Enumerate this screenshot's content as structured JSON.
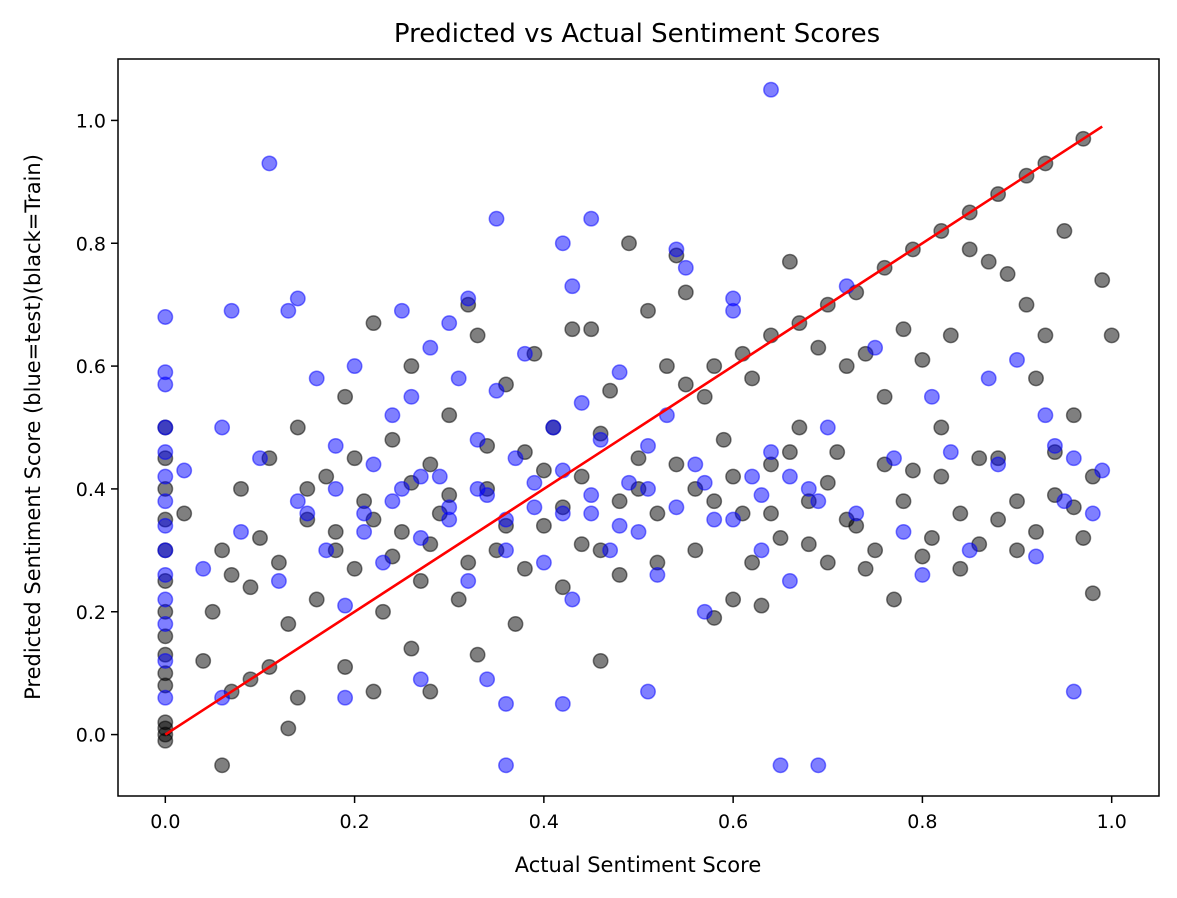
{
  "chart_data": {
    "type": "scatter",
    "title": "Predicted vs Actual Sentiment Scores",
    "xlabel": "Actual Sentiment Score",
    "ylabel": "Predicted Sentiment Score (blue=test)(black=Train)",
    "xlim": [
      -0.05,
      1.05
    ],
    "ylim": [
      -0.1,
      1.1
    ],
    "xticks": [
      "0.0",
      "0.2",
      "0.4",
      "0.6",
      "0.8",
      "1.0"
    ],
    "yticks": [
      "0.0",
      "0.2",
      "0.4",
      "0.6",
      "0.8",
      "1.0"
    ],
    "grid": false,
    "legend": false,
    "colors": {
      "train": "#000000",
      "test": "#0000ff",
      "fit_line": "#ff0000"
    },
    "point_alpha": 0.5,
    "series": [
      {
        "values_xy": [
          [
            0.0,
            -0.01
          ],
          [
            0.0,
            0.0
          ],
          [
            0.0,
            0.01
          ],
          [
            0.0,
            0.02
          ],
          [
            0.0,
            0.08
          ],
          [
            0.0,
            0.1
          ],
          [
            0.0,
            0.13
          ],
          [
            0.0,
            0.16
          ],
          [
            0.0,
            0.2
          ],
          [
            0.0,
            0.25
          ],
          [
            0.0,
            0.3
          ],
          [
            0.0,
            0.35
          ],
          [
            0.0,
            0.4
          ],
          [
            0.0,
            0.45
          ],
          [
            0.0,
            0.5
          ],
          [
            0.06,
            -0.05
          ],
          [
            0.13,
            0.01
          ],
          [
            0.14,
            0.06
          ],
          [
            0.07,
            0.07
          ],
          [
            0.09,
            0.09
          ],
          [
            0.11,
            0.11
          ],
          [
            0.19,
            0.11
          ],
          [
            0.22,
            0.07
          ],
          [
            0.26,
            0.14
          ],
          [
            0.28,
            0.07
          ],
          [
            0.33,
            0.13
          ],
          [
            0.46,
            0.12
          ],
          [
            0.02,
            0.36
          ],
          [
            0.04,
            0.12
          ],
          [
            0.05,
            0.2
          ],
          [
            0.06,
            0.3
          ],
          [
            0.07,
            0.26
          ],
          [
            0.08,
            0.4
          ],
          [
            0.09,
            0.24
          ],
          [
            0.1,
            0.32
          ],
          [
            0.11,
            0.45
          ],
          [
            0.12,
            0.28
          ],
          [
            0.13,
            0.18
          ],
          [
            0.14,
            0.5
          ],
          [
            0.15,
            0.35
          ],
          [
            0.16,
            0.22
          ],
          [
            0.17,
            0.42
          ],
          [
            0.18,
            0.3
          ],
          [
            0.19,
            0.55
          ],
          [
            0.2,
            0.27
          ],
          [
            0.21,
            0.38
          ],
          [
            0.22,
            0.67
          ],
          [
            0.23,
            0.2
          ],
          [
            0.24,
            0.48
          ],
          [
            0.25,
            0.33
          ],
          [
            0.26,
            0.6
          ],
          [
            0.27,
            0.25
          ],
          [
            0.28,
            0.44
          ],
          [
            0.29,
            0.36
          ],
          [
            0.3,
            0.52
          ],
          [
            0.31,
            0.22
          ],
          [
            0.32,
            0.7
          ],
          [
            0.33,
            0.65
          ],
          [
            0.34,
            0.4
          ],
          [
            0.35,
            0.3
          ],
          [
            0.36,
            0.57
          ],
          [
            0.37,
            0.18
          ],
          [
            0.38,
            0.46
          ],
          [
            0.39,
            0.62
          ],
          [
            0.4,
            0.34
          ],
          [
            0.41,
            0.5
          ],
          [
            0.42,
            0.24
          ],
          [
            0.43,
            0.66
          ],
          [
            0.44,
            0.42
          ],
          [
            0.45,
            0.66
          ],
          [
            0.46,
            0.3
          ],
          [
            0.47,
            0.56
          ],
          [
            0.48,
            0.38
          ],
          [
            0.49,
            0.8
          ],
          [
            0.5,
            0.45
          ],
          [
            0.51,
            0.69
          ],
          [
            0.52,
            0.28
          ],
          [
            0.53,
            0.6
          ],
          [
            0.54,
            0.78
          ],
          [
            0.55,
            0.72
          ],
          [
            0.56,
            0.4
          ],
          [
            0.57,
            0.55
          ],
          [
            0.58,
            0.19
          ],
          [
            0.59,
            0.48
          ],
          [
            0.6,
            0.22
          ],
          [
            0.61,
            0.36
          ],
          [
            0.62,
            0.58
          ],
          [
            0.63,
            0.21
          ],
          [
            0.64,
            0.44
          ],
          [
            0.65,
            0.32
          ],
          [
            0.66,
            0.77
          ],
          [
            0.67,
            0.5
          ],
          [
            0.68,
            0.38
          ],
          [
            0.69,
            0.63
          ],
          [
            0.7,
            0.28
          ],
          [
            0.71,
            0.46
          ],
          [
            0.72,
            0.6
          ],
          [
            0.73,
            0.34
          ],
          [
            0.74,
            0.62
          ],
          [
            0.75,
            0.3
          ],
          [
            0.76,
            0.55
          ],
          [
            0.77,
            0.22
          ],
          [
            0.78,
            0.66
          ],
          [
            0.79,
            0.43
          ],
          [
            0.8,
            0.61
          ],
          [
            0.81,
            0.32
          ],
          [
            0.82,
            0.5
          ],
          [
            0.83,
            0.65
          ],
          [
            0.84,
            0.27
          ],
          [
            0.85,
            0.79
          ],
          [
            0.86,
            0.45
          ],
          [
            0.87,
            0.77
          ],
          [
            0.88,
            0.35
          ],
          [
            0.89,
            0.75
          ],
          [
            0.9,
            0.3
          ],
          [
            0.91,
            0.7
          ],
          [
            0.92,
            0.58
          ],
          [
            0.93,
            0.65
          ],
          [
            0.94,
            0.39
          ],
          [
            0.95,
            0.82
          ],
          [
            0.96,
            0.52
          ],
          [
            0.97,
            0.32
          ],
          [
            0.98,
            0.23
          ],
          [
            0.99,
            0.74
          ],
          [
            1.0,
            0.65
          ],
          [
            0.55,
            0.57
          ],
          [
            0.58,
            0.6
          ],
          [
            0.61,
            0.62
          ],
          [
            0.64,
            0.65
          ],
          [
            0.67,
            0.67
          ],
          [
            0.7,
            0.7
          ],
          [
            0.73,
            0.72
          ],
          [
            0.76,
            0.76
          ],
          [
            0.79,
            0.79
          ],
          [
            0.82,
            0.82
          ],
          [
            0.85,
            0.85
          ],
          [
            0.88,
            0.88
          ],
          [
            0.91,
            0.91
          ],
          [
            0.93,
            0.93
          ],
          [
            0.97,
            0.97
          ],
          [
            0.15,
            0.4
          ],
          [
            0.18,
            0.33
          ],
          [
            0.2,
            0.45
          ],
          [
            0.22,
            0.35
          ],
          [
            0.24,
            0.29
          ],
          [
            0.26,
            0.41
          ],
          [
            0.28,
            0.31
          ],
          [
            0.3,
            0.39
          ],
          [
            0.32,
            0.28
          ],
          [
            0.34,
            0.47
          ],
          [
            0.36,
            0.34
          ],
          [
            0.38,
            0.27
          ],
          [
            0.4,
            0.43
          ],
          [
            0.42,
            0.37
          ],
          [
            0.44,
            0.31
          ],
          [
            0.46,
            0.49
          ],
          [
            0.48,
            0.26
          ],
          [
            0.5,
            0.4
          ],
          [
            0.52,
            0.36
          ],
          [
            0.54,
            0.44
          ],
          [
            0.56,
            0.3
          ],
          [
            0.58,
            0.38
          ],
          [
            0.6,
            0.42
          ],
          [
            0.62,
            0.28
          ],
          [
            0.64,
            0.36
          ],
          [
            0.66,
            0.46
          ],
          [
            0.68,
            0.31
          ],
          [
            0.7,
            0.41
          ],
          [
            0.72,
            0.35
          ],
          [
            0.74,
            0.27
          ],
          [
            0.76,
            0.44
          ],
          [
            0.78,
            0.38
          ],
          [
            0.8,
            0.29
          ],
          [
            0.82,
            0.42
          ],
          [
            0.84,
            0.36
          ],
          [
            0.86,
            0.31
          ],
          [
            0.88,
            0.45
          ],
          [
            0.9,
            0.38
          ],
          [
            0.92,
            0.33
          ],
          [
            0.94,
            0.46
          ],
          [
            0.96,
            0.37
          ],
          [
            0.98,
            0.42
          ]
        ]
      },
      {
        "values_xy": [
          [
            0.0,
            0.06
          ],
          [
            0.0,
            0.12
          ],
          [
            0.0,
            0.18
          ],
          [
            0.0,
            0.22
          ],
          [
            0.0,
            0.26
          ],
          [
            0.0,
            0.3
          ],
          [
            0.0,
            0.34
          ],
          [
            0.0,
            0.38
          ],
          [
            0.0,
            0.42
          ],
          [
            0.0,
            0.46
          ],
          [
            0.0,
            0.5
          ],
          [
            0.0,
            0.57
          ],
          [
            0.0,
            0.59
          ],
          [
            0.0,
            0.68
          ],
          [
            0.11,
            0.93
          ],
          [
            0.64,
            1.05
          ],
          [
            0.35,
            0.84
          ],
          [
            0.45,
            0.84
          ],
          [
            0.42,
            0.8
          ],
          [
            0.43,
            0.73
          ],
          [
            0.32,
            0.71
          ],
          [
            0.14,
            0.71
          ],
          [
            0.07,
            0.69
          ],
          [
            0.13,
            0.69
          ],
          [
            0.25,
            0.69
          ],
          [
            0.3,
            0.67
          ],
          [
            0.36,
            -0.05
          ],
          [
            0.65,
            -0.05
          ],
          [
            0.69,
            -0.05
          ],
          [
            0.96,
            0.07
          ],
          [
            0.51,
            0.07
          ],
          [
            0.19,
            0.06
          ],
          [
            0.36,
            0.05
          ],
          [
            0.42,
            0.05
          ],
          [
            0.27,
            0.09
          ],
          [
            0.34,
            0.09
          ],
          [
            0.06,
            0.06
          ],
          [
            0.02,
            0.43
          ],
          [
            0.04,
            0.27
          ],
          [
            0.06,
            0.5
          ],
          [
            0.08,
            0.33
          ],
          [
            0.1,
            0.45
          ],
          [
            0.12,
            0.25
          ],
          [
            0.14,
            0.38
          ],
          [
            0.16,
            0.58
          ],
          [
            0.17,
            0.3
          ],
          [
            0.18,
            0.47
          ],
          [
            0.19,
            0.21
          ],
          [
            0.2,
            0.6
          ],
          [
            0.21,
            0.36
          ],
          [
            0.22,
            0.44
          ],
          [
            0.23,
            0.28
          ],
          [
            0.24,
            0.52
          ],
          [
            0.25,
            0.4
          ],
          [
            0.26,
            0.55
          ],
          [
            0.27,
            0.32
          ],
          [
            0.28,
            0.63
          ],
          [
            0.29,
            0.42
          ],
          [
            0.3,
            0.35
          ],
          [
            0.31,
            0.58
          ],
          [
            0.32,
            0.25
          ],
          [
            0.33,
            0.48
          ],
          [
            0.34,
            0.39
          ],
          [
            0.35,
            0.56
          ],
          [
            0.36,
            0.3
          ],
          [
            0.37,
            0.45
          ],
          [
            0.38,
            0.62
          ],
          [
            0.39,
            0.37
          ],
          [
            0.4,
            0.28
          ],
          [
            0.41,
            0.5
          ],
          [
            0.42,
            0.43
          ],
          [
            0.43,
            0.22
          ],
          [
            0.44,
            0.54
          ],
          [
            0.45,
            0.36
          ],
          [
            0.46,
            0.48
          ],
          [
            0.47,
            0.3
          ],
          [
            0.48,
            0.59
          ],
          [
            0.49,
            0.41
          ],
          [
            0.5,
            0.33
          ],
          [
            0.51,
            0.47
          ],
          [
            0.52,
            0.26
          ],
          [
            0.53,
            0.52
          ],
          [
            0.54,
            0.79
          ],
          [
            0.55,
            0.76
          ],
          [
            0.56,
            0.44
          ],
          [
            0.57,
            0.2
          ],
          [
            0.58,
            0.35
          ],
          [
            0.6,
            0.71
          ],
          [
            0.6,
            0.69
          ],
          [
            0.62,
            0.42
          ],
          [
            0.63,
            0.3
          ],
          [
            0.64,
            0.46
          ],
          [
            0.66,
            0.25
          ],
          [
            0.68,
            0.4
          ],
          [
            0.7,
            0.5
          ],
          [
            0.72,
            0.73
          ],
          [
            0.73,
            0.36
          ],
          [
            0.75,
            0.63
          ],
          [
            0.77,
            0.45
          ],
          [
            0.78,
            0.33
          ],
          [
            0.8,
            0.26
          ],
          [
            0.81,
            0.55
          ],
          [
            0.83,
            0.46
          ],
          [
            0.85,
            0.3
          ],
          [
            0.87,
            0.58
          ],
          [
            0.88,
            0.44
          ],
          [
            0.9,
            0.61
          ],
          [
            0.92,
            0.29
          ],
          [
            0.93,
            0.52
          ],
          [
            0.94,
            0.47
          ],
          [
            0.95,
            0.38
          ],
          [
            0.96,
            0.45
          ],
          [
            0.98,
            0.36
          ],
          [
            0.99,
            0.43
          ],
          [
            0.15,
            0.36
          ],
          [
            0.18,
            0.4
          ],
          [
            0.21,
            0.33
          ],
          [
            0.24,
            0.38
          ],
          [
            0.27,
            0.42
          ],
          [
            0.3,
            0.37
          ],
          [
            0.33,
            0.4
          ],
          [
            0.36,
            0.35
          ],
          [
            0.39,
            0.41
          ],
          [
            0.42,
            0.36
          ],
          [
            0.45,
            0.39
          ],
          [
            0.48,
            0.34
          ],
          [
            0.51,
            0.4
          ],
          [
            0.54,
            0.37
          ],
          [
            0.57,
            0.41
          ],
          [
            0.6,
            0.35
          ],
          [
            0.63,
            0.39
          ],
          [
            0.66,
            0.42
          ],
          [
            0.69,
            0.38
          ]
        ]
      }
    ],
    "fit_line": {
      "x": [
        0.0,
        0.99
      ],
      "y": [
        0.0,
        0.99
      ]
    }
  }
}
